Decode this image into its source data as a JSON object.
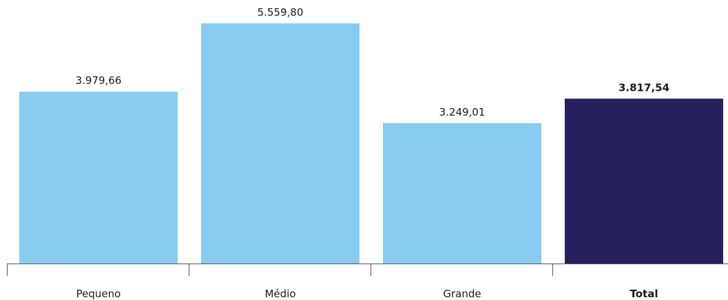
{
  "chart_data": {
    "type": "bar",
    "categories": [
      "Pequeno",
      "Médio",
      "Grande",
      "Total"
    ],
    "values": [
      3979.66,
      5559.8,
      3249.01,
      3817.54
    ],
    "value_labels": [
      "3.979,66",
      "5.559,80",
      "3.249,01",
      "3.817,54"
    ],
    "highlighted_category": "Total",
    "title": "",
    "xlabel": "",
    "ylabel": "",
    "ylim": [
      0,
      5559.8
    ],
    "grid": false,
    "colors": {
      "bar": "#87CCEF",
      "highlight": "#25215F"
    }
  }
}
